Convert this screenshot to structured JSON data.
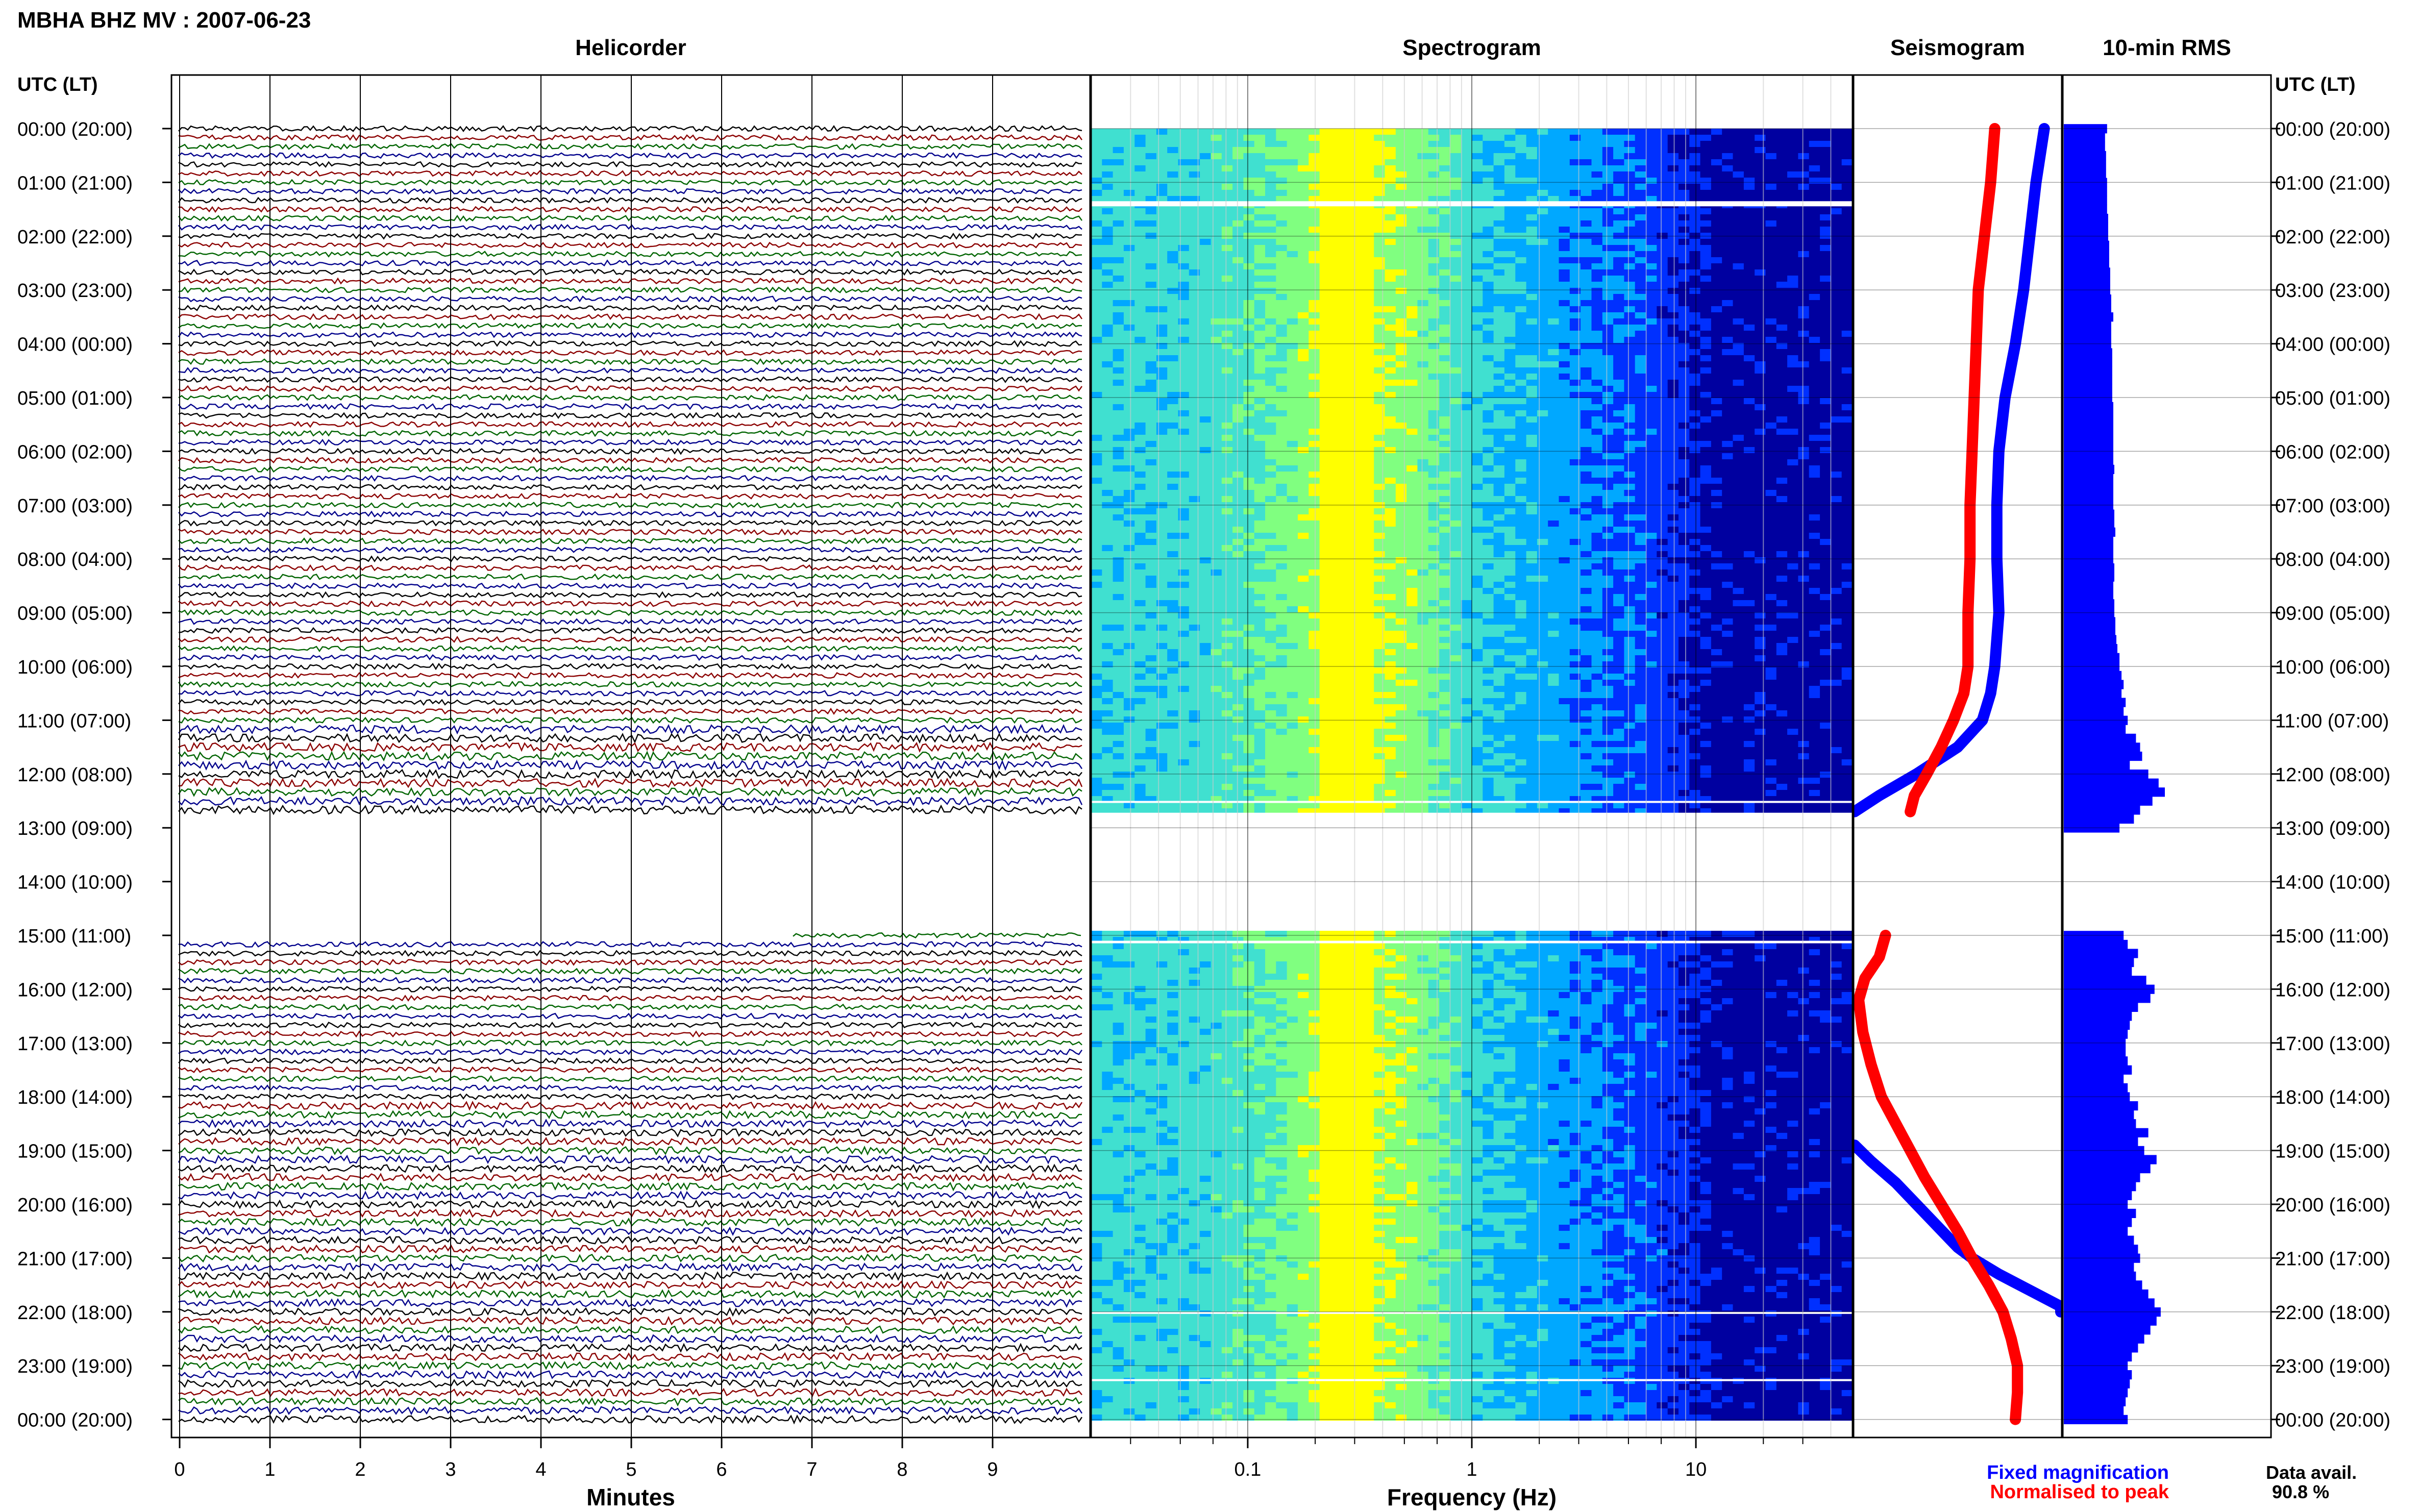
{
  "title": "MBHA BHZ MV : 2007-06-23",
  "panels": {
    "helicorder": "Helicorder",
    "spectrogram": "Spectrogram",
    "seismogram": "Seismogram",
    "rms": "10-min RMS"
  },
  "axis_left_label": "UTC (LT)",
  "axis_right_label": "UTC (LT)",
  "time_labels": [
    "00:00 (20:00)",
    "01:00 (21:00)",
    "02:00 (22:00)",
    "03:00 (23:00)",
    "04:00 (00:00)",
    "05:00 (01:00)",
    "06:00 (02:00)",
    "07:00 (03:00)",
    "08:00 (04:00)",
    "09:00 (05:00)",
    "10:00 (06:00)",
    "11:00 (07:00)",
    "12:00 (08:00)",
    "13:00 (09:00)",
    "14:00 (10:00)",
    "15:00 (11:00)",
    "16:00 (12:00)",
    "17:00 (13:00)",
    "18:00 (14:00)",
    "19:00 (15:00)",
    "20:00 (16:00)",
    "21:00 (17:00)",
    "22:00 (18:00)",
    "23:00 (19:00)",
    "00:00 (20:00)"
  ],
  "helicorder_xlabel": "Minutes",
  "helicorder_xticks": [
    "0",
    "1",
    "2",
    "3",
    "4",
    "5",
    "6",
    "7",
    "8",
    "9"
  ],
  "spectrogram_xlabel": "Frequency (Hz)",
  "spectrogram_xticks": [
    "0.1",
    "1",
    "10"
  ],
  "legend": {
    "fixed": "Fixed magnification",
    "normalised": "Normalised to peak"
  },
  "data_avail": {
    "label": "Data avail.",
    "value": "90.8 %"
  },
  "colors": {
    "fixed": "#0000ff",
    "normalised": "#ff0000",
    "rms_bar": "#0000ff",
    "trace_cycle": [
      "#000000",
      "#8b0000",
      "#006400",
      "#00008b"
    ]
  },
  "chart_data": {
    "type": "heatmap",
    "gap_hours": [
      12.75,
      14.9
    ],
    "helicorder": {
      "type": "line",
      "xlabel": "Minutes",
      "xlim": [
        0,
        10
      ],
      "lines_per_hour": 6,
      "trace_colors": [
        "#000000",
        "#8b0000",
        "#006400",
        "#00008b"
      ]
    },
    "spectrogram": {
      "type": "heatmap",
      "xlabel": "Frequency (Hz)",
      "xscale": "log",
      "xlim": [
        0.02,
        50
      ],
      "colormap": [
        "#0000a0",
        "#0030ff",
        "#00a8ff",
        "#40e0d0",
        "#80ff80",
        "#ffff00"
      ],
      "peak_band_hz": [
        0.2,
        0.35
      ]
    },
    "seismogram": {
      "type": "line",
      "ylabel": "UTC (LT)",
      "series": [
        {
          "name": "Fixed magnification",
          "color": "#0000ff",
          "hours": [
            0,
            0.5,
            1,
            2,
            3,
            4,
            5,
            6,
            7,
            8,
            9,
            10,
            10.5,
            11,
            11.5,
            12,
            12.4,
            12.7
          ],
          "values": [
            0.92,
            0.9,
            0.88,
            0.85,
            0.82,
            0.78,
            0.73,
            0.7,
            0.69,
            0.69,
            0.7,
            0.68,
            0.66,
            0.62,
            0.5,
            0.3,
            0.12,
            0.0
          ]
        },
        {
          "name": "Normalised to peak",
          "color": "#ff0000",
          "hours": [
            0,
            1,
            2,
            3,
            4,
            5,
            6,
            7,
            8,
            9,
            10,
            10.5,
            11,
            11.5,
            12,
            12.4,
            12.7
          ],
          "values": [
            0.68,
            0.66,
            0.63,
            0.6,
            0.59,
            0.58,
            0.57,
            0.56,
            0.56,
            0.55,
            0.55,
            0.53,
            0.48,
            0.42,
            0.35,
            0.29,
            0.27
          ]
        },
        {
          "name": "Fixed magnification",
          "color": "#0000ff",
          "hours": [
            18.9,
            19.2,
            19.6,
            20.0,
            20.4,
            20.8,
            21.0,
            21.3,
            21.6,
            21.9,
            22.0
          ],
          "values": [
            0.0,
            0.08,
            0.2,
            0.3,
            0.4,
            0.5,
            0.57,
            0.7,
            0.85,
            1.0,
            1.0
          ]
        },
        {
          "name": "Normalised to peak",
          "color": "#ff0000",
          "hours": [
            15.0,
            15.4,
            15.8,
            16.2,
            16.8,
            17.4,
            18.0,
            18.5,
            19.0,
            19.5,
            20.0,
            20.5,
            21.0,
            21.5,
            22.0,
            22.5,
            23.0,
            23.5,
            24.0
          ],
          "values": [
            0.15,
            0.12,
            0.05,
            0.02,
            0.04,
            0.08,
            0.13,
            0.2,
            0.27,
            0.34,
            0.42,
            0.5,
            0.57,
            0.65,
            0.72,
            0.76,
            0.79,
            0.79,
            0.78
          ]
        }
      ]
    },
    "rms": {
      "type": "bar",
      "xlabel": "10-min RMS",
      "bin_minutes": 10,
      "segments": [
        {
          "start_hour": 0,
          "values": [
            0.42,
            0.4,
            0.4,
            0.41,
            0.41,
            0.41,
            0.42,
            0.42,
            0.42,
            0.42,
            0.43,
            0.43,
            0.43,
            0.44,
            0.44,
            0.44,
            0.45,
            0.45,
            0.45,
            0.46,
            0.46,
            0.48,
            0.46,
            0.46,
            0.46,
            0.47,
            0.47,
            0.47,
            0.47,
            0.47,
            0.47,
            0.48,
            0.48,
            0.48,
            0.48,
            0.48,
            0.48,
            0.48,
            0.49,
            0.48,
            0.48,
            0.48,
            0.48,
            0.49,
            0.49,
            0.5,
            0.48,
            0.48,
            0.48,
            0.49,
            0.49,
            0.48,
            0.48,
            0.49,
            0.49,
            0.5,
            0.5,
            0.51,
            0.52,
            0.54,
            0.54,
            0.56,
            0.58,
            0.56,
            0.6,
            0.58,
            0.62,
            0.6,
            0.7,
            0.74,
            0.76,
            0.64,
            0.82,
            0.92,
            0.98,
            0.86,
            0.74,
            0.68,
            0.54
          ]
        },
        {
          "start_hour": 15,
          "values": [
            0.58,
            0.62,
            0.72,
            0.68,
            0.66,
            0.8,
            0.88,
            0.84,
            0.72,
            0.66,
            0.64,
            0.62,
            0.6,
            0.6,
            0.62,
            0.66,
            0.58,
            0.62,
            0.64,
            0.72,
            0.68,
            0.7,
            0.82,
            0.72,
            0.78,
            0.9,
            0.84,
            0.74,
            0.7,
            0.66,
            0.62,
            0.7,
            0.66,
            0.62,
            0.68,
            0.72,
            0.74,
            0.68,
            0.7,
            0.76,
            0.82,
            0.88,
            0.94,
            0.9,
            0.84,
            0.78,
            0.72,
            0.66,
            0.62,
            0.66,
            0.64,
            0.62,
            0.6,
            0.58,
            0.62
          ]
        }
      ]
    }
  }
}
